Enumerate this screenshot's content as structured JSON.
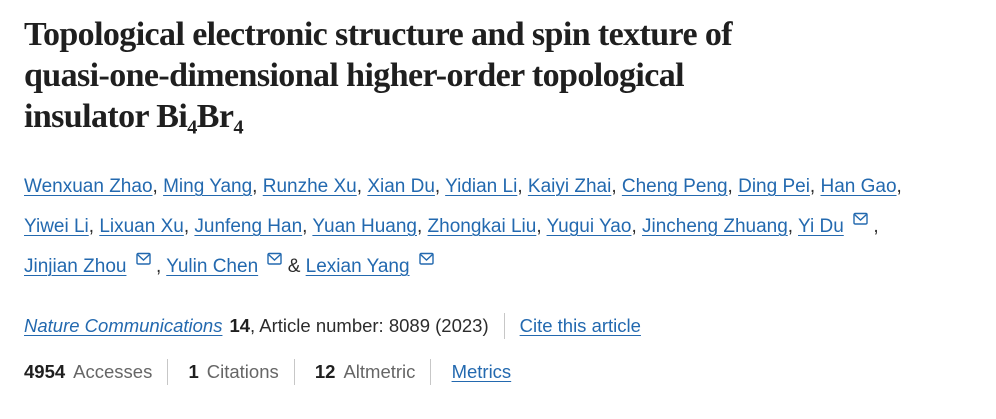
{
  "colors": {
    "link_blue": "#2369af",
    "title_text": "#1f1f1f",
    "body_text": "#2c2c2c",
    "muted_label": "#666666",
    "divider_gray": "#c7c7c7",
    "background": "#ffffff"
  },
  "title": {
    "lines": [
      "Topological electronic structure and spin texture of",
      "quasi-one-dimensional higher-order topological",
      "insulator Bi₄Br₄"
    ]
  },
  "authors": {
    "separator": ", ",
    "last_separator": " & ",
    "email_icon_name": "envelope-icon",
    "items": [
      {
        "name": "Wenxuan Zhao",
        "email_icon": false
      },
      {
        "name": "Ming Yang",
        "email_icon": false
      },
      {
        "name": "Runzhe Xu",
        "email_icon": false
      },
      {
        "name": "Xian Du",
        "email_icon": false
      },
      {
        "name": "Yidian Li",
        "email_icon": false
      },
      {
        "name": "Kaiyi Zhai",
        "email_icon": false
      },
      {
        "name": "Cheng Peng",
        "email_icon": false
      },
      {
        "name": "Ding Pei",
        "email_icon": false
      },
      {
        "name": "Han Gao",
        "email_icon": false
      },
      {
        "name": "Yiwei Li",
        "email_icon": false
      },
      {
        "name": "Lixuan Xu",
        "email_icon": false
      },
      {
        "name": "Junfeng Han",
        "email_icon": false
      },
      {
        "name": "Yuan Huang",
        "email_icon": false
      },
      {
        "name": "Zhongkai Liu",
        "email_icon": false
      },
      {
        "name": "Yugui Yao",
        "email_icon": false
      },
      {
        "name": "Jincheng Zhuang",
        "email_icon": false
      },
      {
        "name": "Yi Du",
        "email_icon": true
      },
      {
        "name": "Jinjian Zhou",
        "email_icon": true
      },
      {
        "name": "Yulin Chen",
        "email_icon": true
      },
      {
        "name": "Lexian Yang",
        "email_icon": true
      }
    ]
  },
  "journal": {
    "name": "Nature Communications",
    "volume": "14",
    "article_info": ", Article number: 8089 (2023)",
    "cite_label": "Cite this article"
  },
  "metrics": {
    "items": [
      {
        "value": "4954",
        "label": "Accesses"
      },
      {
        "value": "1",
        "label": "Citations"
      },
      {
        "value": "12",
        "label": "Altmetric"
      }
    ],
    "link_label": "Metrics"
  }
}
